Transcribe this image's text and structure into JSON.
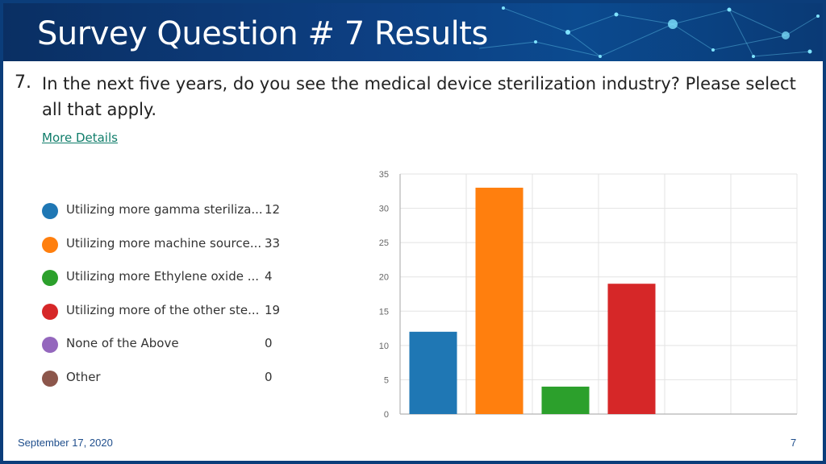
{
  "slide": {
    "title": "Survey Question # 7 Results",
    "question_number": "7.",
    "question_text": "In the next five years, do you see the medical device sterilization industry? Please select all that apply.",
    "more_details_label": "More Details",
    "footer_date": "September 17, 2020",
    "page_number": "7"
  },
  "legend": [
    {
      "label": "Utilizing more gamma steriliza...",
      "value": "12",
      "color": "#1f77b4"
    },
    {
      "label": "Utilizing more machine source...",
      "value": "33",
      "color": "#ff7f0e"
    },
    {
      "label": "Utilizing more Ethylene oxide ...",
      "value": "4",
      "color": "#2ca02c"
    },
    {
      "label": "Utilizing more of the other ste...",
      "value": "19",
      "color": "#d62728"
    },
    {
      "label": "None of the Above",
      "value": "0",
      "color": "#9467bd"
    },
    {
      "label": "Other",
      "value": "0",
      "color": "#8c564b"
    }
  ],
  "chart_data": {
    "type": "bar",
    "categories": [
      "Utilizing more gamma steriliza...",
      "Utilizing more machine source...",
      "Utilizing more Ethylene oxide ...",
      "Utilizing more of the other ste...",
      "None of the Above",
      "Other"
    ],
    "values": [
      12,
      33,
      4,
      19,
      0,
      0
    ],
    "colors": [
      "#1f77b4",
      "#ff7f0e",
      "#2ca02c",
      "#d62728",
      "#9467bd",
      "#8c564b"
    ],
    "ylim": [
      0,
      35
    ],
    "yticks": [
      0,
      5,
      10,
      15,
      20,
      25,
      30,
      35
    ],
    "grid": true,
    "legend_position": "left",
    "title": "",
    "xlabel": "",
    "ylabel": ""
  }
}
